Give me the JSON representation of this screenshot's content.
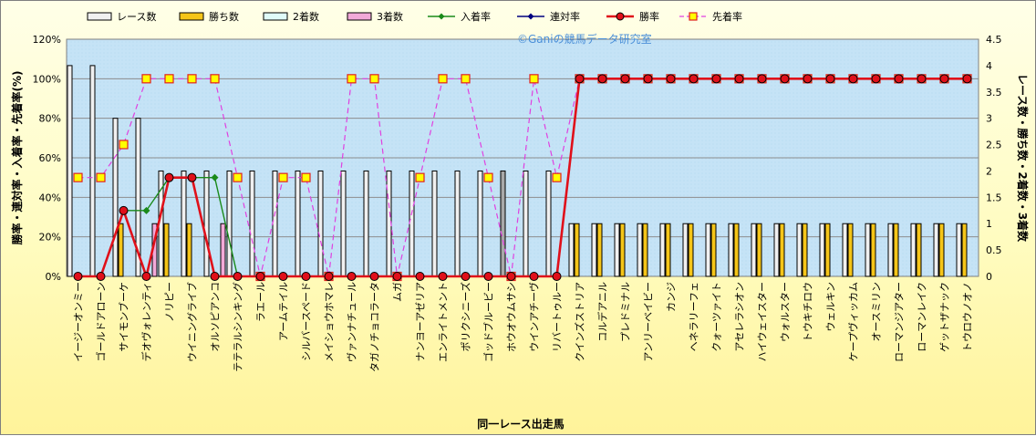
{
  "chart_data": {
    "type": "bar",
    "watermark": "©Ganiの競馬データ研究室",
    "xlabel": "同一レース出走馬",
    "ylabel_left": "勝率・連対率・入着率・先着率(%)",
    "ylabel_right": "レース数・勝ち数・2着数・3着数",
    "ylim_left": [
      0,
      120
    ],
    "ylim_right": [
      0,
      4.5
    ],
    "yticks_left": [
      "0%",
      "20%",
      "40%",
      "60%",
      "80%",
      "100%",
      "120%"
    ],
    "yticks_right": [
      "0",
      "0.5",
      "1",
      "1.5",
      "2",
      "2.5",
      "3",
      "3.5",
      "4",
      "4.5"
    ],
    "grid": true,
    "legend_position": "top",
    "categories": [
      "イージーオンミー",
      "ゴールドアローン",
      "サイモンブーケ",
      "デオヴォレンティ",
      "ノリピー",
      "ウイニングライブ",
      "オルソピアンコ",
      "テテラルシンキング",
      "ラエール",
      "アームテイル",
      "シルバースペード",
      "メイショウホマレ",
      "ヴァンナチュール",
      "タガノチョコラータ",
      "ムガ",
      "ナンヨーアゼリア",
      "エンライトメント",
      "ポリクシニーズ",
      "ゴッドブルービー",
      "ホウオウムサシ",
      "ウインアチーヴ",
      "リバートゥルー",
      "クインズストリア",
      "コルデアニル",
      "プレドミナル",
      "アンリーベイビー",
      "カンジ",
      "ヘネラリーフェ",
      "クォーツァイト",
      "アセレラシオン",
      "ハイウェイスター",
      "ウォルスター",
      "トウキチロウ",
      "ウェルキン",
      "ケープヴィッカム",
      "オースミリン",
      "ローマンジアター",
      "ローマンレイク",
      "ゲットザナック",
      "トウロウノオノ"
    ],
    "series": [
      {
        "name": "レース数",
        "kind": "bar",
        "axis": "right",
        "color": "#f0f0f0",
        "values": [
          4,
          4,
          3,
          3,
          2,
          2,
          2,
          2,
          2,
          2,
          2,
          2,
          2,
          2,
          2,
          2,
          2,
          2,
          2,
          2,
          2,
          2,
          1,
          1,
          1,
          1,
          1,
          1,
          1,
          1,
          1,
          1,
          1,
          1,
          1,
          1,
          1,
          1,
          1,
          1
        ]
      },
      {
        "name": "勝ち数",
        "kind": "bar",
        "axis": "right",
        "color": "#f5c518",
        "values": [
          0,
          0,
          1,
          0,
          1,
          1,
          0,
          0,
          0,
          0,
          0,
          0,
          0,
          0,
          0,
          0,
          0,
          0,
          0,
          0,
          0,
          0,
          1,
          1,
          1,
          1,
          1,
          1,
          1,
          1,
          1,
          1,
          1,
          1,
          1,
          1,
          1,
          1,
          1,
          1
        ]
      },
      {
        "name": "2着数",
        "kind": "bar",
        "axis": "right",
        "color": "#e0fbf8",
        "values": [
          0,
          0,
          0,
          0,
          0,
          0,
          0,
          0,
          0,
          0,
          0,
          0,
          0,
          0,
          0,
          0,
          0,
          0,
          0,
          0,
          0,
          0,
          0,
          0,
          0,
          0,
          0,
          0,
          0,
          0,
          0,
          0,
          0,
          0,
          0,
          0,
          0,
          0,
          0,
          0
        ]
      },
      {
        "name": "3着数",
        "kind": "bar",
        "axis": "right",
        "color": "#f2a9d8",
        "values": [
          0,
          0,
          0,
          1,
          0,
          0,
          1,
          0,
          0,
          0,
          0,
          0,
          0,
          0,
          0,
          0,
          0,
          0,
          0,
          0,
          0,
          0,
          0,
          0,
          0,
          0,
          0,
          0,
          0,
          0,
          0,
          0,
          0,
          0,
          0,
          0,
          0,
          0,
          0,
          0
        ]
      },
      {
        "name": "入着率",
        "kind": "line",
        "axis": "left",
        "color": "#1a8a1a",
        "values": [
          0,
          0,
          33.3,
          33.3,
          50,
          50,
          50,
          0,
          0,
          0,
          0,
          0,
          0,
          0,
          0,
          0,
          0,
          0,
          0,
          0,
          0,
          0,
          100,
          100,
          100,
          100,
          100,
          100,
          100,
          100,
          100,
          100,
          100,
          100,
          100,
          100,
          100,
          100,
          100,
          100
        ]
      },
      {
        "name": "連対率",
        "kind": "line",
        "axis": "left",
        "color": "#000080",
        "values": [
          0,
          0,
          33.3,
          0,
          50,
          50,
          0,
          0,
          0,
          0,
          0,
          0,
          0,
          0,
          0,
          0,
          0,
          0,
          0,
          0,
          0,
          0,
          100,
          100,
          100,
          100,
          100,
          100,
          100,
          100,
          100,
          100,
          100,
          100,
          100,
          100,
          100,
          100,
          100,
          100
        ]
      },
      {
        "name": "勝率",
        "kind": "line",
        "axis": "left",
        "color": "#e0101a",
        "values": [
          0,
          0,
          33.3,
          0,
          50,
          50,
          0,
          0,
          0,
          0,
          0,
          0,
          0,
          0,
          0,
          0,
          0,
          0,
          0,
          0,
          0,
          0,
          100,
          100,
          100,
          100,
          100,
          100,
          100,
          100,
          100,
          100,
          100,
          100,
          100,
          100,
          100,
          100,
          100,
          100
        ]
      },
      {
        "name": "先着率",
        "kind": "line",
        "axis": "left",
        "color": "#e040e0",
        "values": [
          50,
          50,
          66.7,
          100,
          100,
          100,
          100,
          50,
          0,
          50,
          50,
          0,
          100,
          100,
          0,
          50,
          100,
          100,
          50,
          0,
          100,
          50,
          100,
          100,
          100,
          100,
          100,
          100,
          100,
          100,
          100,
          100,
          100,
          100,
          100,
          100,
          100,
          100,
          100,
          100
        ]
      }
    ]
  }
}
